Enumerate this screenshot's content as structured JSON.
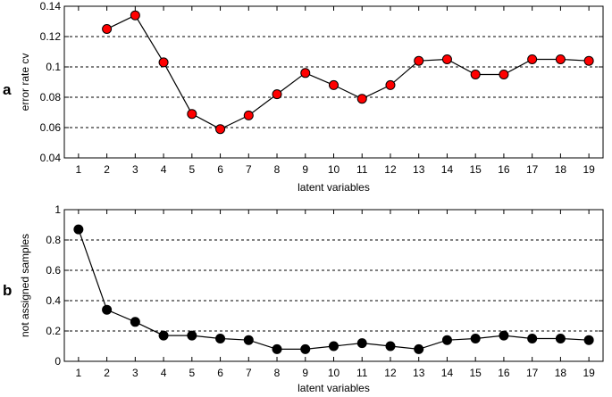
{
  "chart_data": [
    {
      "type": "line",
      "panel_label": "a",
      "xlabel": "latent variables",
      "ylabel": "error rate cv",
      "x_ticks": [
        "1",
        "2",
        "3",
        "4",
        "5",
        "6",
        "7",
        "8",
        "9",
        "10",
        "11",
        "12",
        "13",
        "14",
        "15",
        "16",
        "17",
        "18",
        "19"
      ],
      "y_ticks": [
        "0.04",
        "0.06",
        "0.08",
        "0.1",
        "0.12",
        "0.14"
      ],
      "xlim": [
        0.5,
        19.5
      ],
      "ylim": [
        0.04,
        0.14
      ],
      "grid": "horizontal-dashed",
      "marker_color": "#ff0000",
      "line_color": "#000000",
      "series": [
        {
          "x": [
            2,
            3,
            4,
            5,
            6,
            7,
            8,
            9,
            10,
            11,
            12,
            13,
            14,
            15,
            16,
            17,
            18,
            19
          ],
          "values": [
            0.125,
            0.134,
            0.103,
            0.069,
            0.059,
            0.068,
            0.082,
            0.096,
            0.088,
            0.079,
            0.088,
            0.104,
            0.105,
            0.095,
            0.095,
            0.105,
            0.105,
            0.104
          ]
        }
      ]
    },
    {
      "type": "line",
      "panel_label": "b",
      "xlabel": "latent variables",
      "ylabel": "not assigned samples",
      "x_ticks": [
        "1",
        "2",
        "3",
        "4",
        "5",
        "6",
        "7",
        "8",
        "9",
        "10",
        "11",
        "12",
        "13",
        "14",
        "15",
        "16",
        "17",
        "18",
        "19"
      ],
      "y_ticks": [
        "0",
        "0.2",
        "0.4",
        "0.6",
        "0.8",
        "1"
      ],
      "xlim": [
        0.5,
        19.5
      ],
      "ylim": [
        0,
        1
      ],
      "grid": "horizontal-dashed",
      "marker_color": "#000000",
      "line_color": "#000000",
      "series": [
        {
          "x": [
            1,
            2,
            3,
            4,
            5,
            6,
            7,
            8,
            9,
            10,
            11,
            12,
            13,
            14,
            15,
            16,
            17,
            18,
            19
          ],
          "values": [
            0.87,
            0.34,
            0.26,
            0.17,
            0.17,
            0.15,
            0.14,
            0.08,
            0.08,
            0.1,
            0.12,
            0.1,
            0.08,
            0.14,
            0.15,
            0.17,
            0.15,
            0.15,
            0.14
          ]
        }
      ]
    }
  ]
}
